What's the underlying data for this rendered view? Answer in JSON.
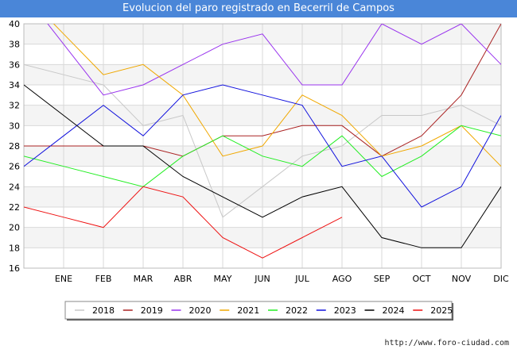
{
  "title": "Evolucion del paro registrado en Becerril de Campos",
  "source_url": "http://www.foro-ciudad.com",
  "chart_data": {
    "type": "line",
    "categories": [
      "ENE",
      "FEB",
      "MAR",
      "ABR",
      "MAY",
      "JUN",
      "JUL",
      "AGO",
      "SEP",
      "OCT",
      "NOV",
      "DIC"
    ],
    "ylim": [
      16,
      40
    ],
    "yticks": [
      16,
      18,
      20,
      22,
      24,
      26,
      28,
      30,
      32,
      34,
      36,
      38,
      40
    ],
    "grid": true,
    "legend_position": "bottom",
    "series": [
      {
        "name": "2018",
        "color": "#c8c8c8",
        "values": [
          35,
          34,
          30,
          31,
          21,
          24,
          27,
          28,
          31,
          31,
          32,
          30
        ]
      },
      {
        "name": "2019",
        "color": "#aa2222",
        "values": [
          28,
          28,
          28,
          27,
          29,
          29,
          30,
          30,
          27,
          29,
          33,
          40
        ]
      },
      {
        "name": "2020",
        "color": "#9933ee",
        "values": [
          38,
          33,
          34,
          36,
          38,
          39,
          34,
          34,
          40,
          38,
          40,
          36
        ]
      },
      {
        "name": "2021",
        "color": "#f0a800",
        "values": [
          39,
          35,
          36,
          33,
          27,
          28,
          33,
          31,
          27,
          28,
          30,
          26
        ]
      },
      {
        "name": "2022",
        "color": "#22ee22",
        "values": [
          26,
          25,
          24,
          27,
          29,
          27,
          26,
          29,
          25,
          27,
          30,
          29
        ]
      },
      {
        "name": "2023",
        "color": "#1111dd",
        "values": [
          29,
          32,
          29,
          33,
          34,
          33,
          32,
          26,
          27,
          22,
          24,
          31
        ]
      },
      {
        "name": "2024",
        "color": "#000000",
        "values": [
          31,
          28,
          28,
          25,
          23,
          21,
          23,
          24,
          19,
          18,
          18,
          24
        ]
      },
      {
        "name": "2025",
        "color": "#ee1111",
        "values": [
          21,
          20,
          24,
          23,
          19,
          17,
          19,
          21,
          null,
          null,
          null,
          null
        ]
      }
    ]
  }
}
